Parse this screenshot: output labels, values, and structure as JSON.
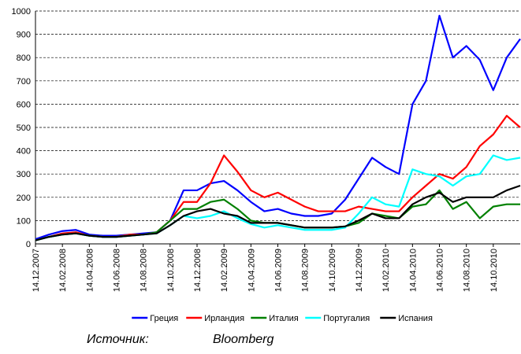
{
  "chart_data": {
    "type": "line",
    "x": [
      "14.12.2007",
      "14.01.2008",
      "14.02.2008",
      "14.03.2008",
      "14.04.2008",
      "14.05.2008",
      "14.06.2008",
      "14.07.2008",
      "14.08.2008",
      "14.09.2008",
      "14.10.2008",
      "14.11.2008",
      "14.12.2008",
      "14.01.2009",
      "14.02.2009",
      "14.03.2009",
      "14.04.2009",
      "14.05.2009",
      "14.06.2009",
      "14.07.2009",
      "14.08.2009",
      "14.09.2009",
      "14.10.2009",
      "14.11.2009",
      "14.12.2009",
      "14.01.2010",
      "14.02.2010",
      "14.03.2010",
      "14.04.2010",
      "14.05.2010",
      "14.06.2010",
      "14.07.2010",
      "14.08.2010",
      "14.09.2010",
      "14.10.2010",
      "14.11.2010",
      "14.12.2010"
    ],
    "xticks": [
      "14.12.2007",
      "14.02.2008",
      "14.04.2008",
      "14.06.2008",
      "14.08.2008",
      "14.10.2008",
      "14.12.2008",
      "14.02.2009",
      "14.04.2009",
      "14.06.2009",
      "14.08.2009",
      "14.10.2009",
      "14.12.2009",
      "14.02.2010",
      "14.04.2010",
      "14.06.2010",
      "14.08.2010",
      "14.10.2010"
    ],
    "series": [
      {
        "name": "Греция",
        "color": "#0000ff",
        "values": [
          20,
          40,
          55,
          60,
          40,
          35,
          35,
          40,
          45,
          50,
          100,
          230,
          230,
          260,
          270,
          230,
          180,
          140,
          150,
          130,
          120,
          120,
          130,
          190,
          280,
          370,
          330,
          300,
          600,
          700,
          980,
          800,
          850,
          790,
          660,
          800,
          880
        ]
      },
      {
        "name": "Ирландия",
        "color": "#ff0000",
        "values": [
          15,
          30,
          45,
          50,
          35,
          30,
          30,
          40,
          40,
          50,
          100,
          180,
          180,
          260,
          380,
          310,
          230,
          200,
          220,
          190,
          160,
          140,
          140,
          140,
          160,
          150,
          140,
          140,
          200,
          250,
          300,
          280,
          330,
          420,
          470,
          550,
          500
        ]
      },
      {
        "name": "Италия",
        "color": "#008000",
        "values": [
          15,
          30,
          40,
          45,
          35,
          30,
          30,
          35,
          40,
          50,
          100,
          150,
          150,
          180,
          190,
          150,
          100,
          90,
          90,
          80,
          70,
          70,
          70,
          75,
          90,
          130,
          120,
          110,
          160,
          170,
          230,
          150,
          180,
          110,
          160,
          170,
          170
        ]
      },
      {
        "name": "Португалия",
        "color": "#00ffff",
        "values": [
          15,
          30,
          40,
          45,
          35,
          30,
          30,
          35,
          40,
          45,
          80,
          120,
          110,
          120,
          140,
          110,
          85,
          70,
          80,
          70,
          60,
          60,
          60,
          70,
          130,
          200,
          170,
          160,
          320,
          300,
          290,
          250,
          290,
          300,
          380,
          360,
          370
        ]
      },
      {
        "name": "Испания",
        "color": "#000000",
        "values": [
          15,
          30,
          40,
          45,
          35,
          30,
          30,
          35,
          40,
          45,
          80,
          120,
          140,
          150,
          130,
          120,
          90,
          90,
          90,
          80,
          70,
          70,
          70,
          75,
          100,
          130,
          110,
          110,
          170,
          200,
          220,
          180,
          200,
          200,
          200,
          230,
          250
        ]
      }
    ],
    "ylim": [
      0,
      1000
    ],
    "yticks": [
      0,
      100,
      200,
      300,
      400,
      500,
      600,
      700,
      800,
      900,
      1000
    ],
    "grid": true,
    "legend": "bottom",
    "source_label": "Источник:",
    "source": "Bloomberg"
  }
}
